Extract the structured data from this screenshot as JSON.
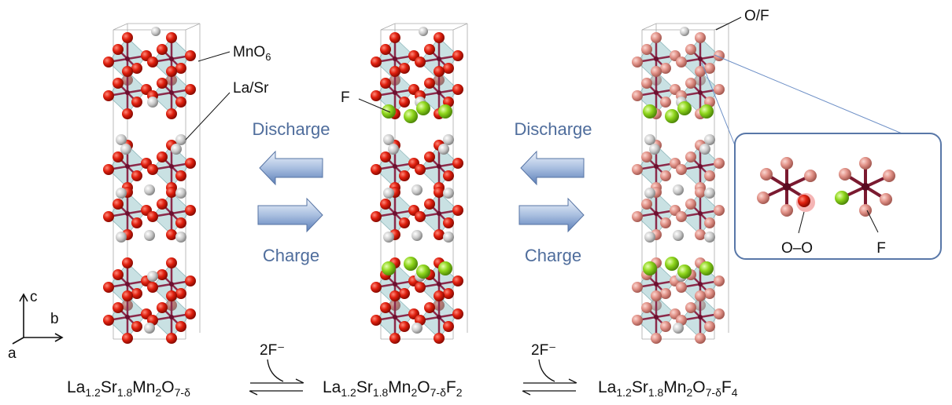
{
  "labels": {
    "mno6": {
      "base": "MnO",
      "sub": "6"
    },
    "la_sr": "La/Sr",
    "f_left": "F",
    "o_f": "O/F"
  },
  "arrows": [
    {
      "top": "Discharge",
      "bottom": "Charge"
    },
    {
      "top": "Discharge",
      "bottom": "Charge"
    }
  ],
  "inset": {
    "left": "O–O",
    "right": "F"
  },
  "axes": {
    "c": "c",
    "b": "b",
    "a": "a"
  },
  "reaction": {
    "formulas": [
      [
        [
          "La",
          "1.2"
        ],
        [
          "Sr",
          "1.8"
        ],
        [
          "Mn",
          "2"
        ],
        [
          "O",
          "7-δ"
        ]
      ],
      [
        [
          "La",
          "1.2"
        ],
        [
          "Sr",
          "1.8"
        ],
        [
          "Mn",
          "2"
        ],
        [
          "O",
          "7-δ"
        ],
        [
          "F",
          "2"
        ]
      ],
      [
        [
          "La",
          "1.2"
        ],
        [
          "Sr",
          "1.8"
        ],
        [
          "Mn",
          "2"
        ],
        [
          "O",
          "7-δ"
        ],
        [
          "F",
          "4"
        ]
      ]
    ],
    "reagents": [
      "2F⁻",
      "2F⁻"
    ]
  }
}
